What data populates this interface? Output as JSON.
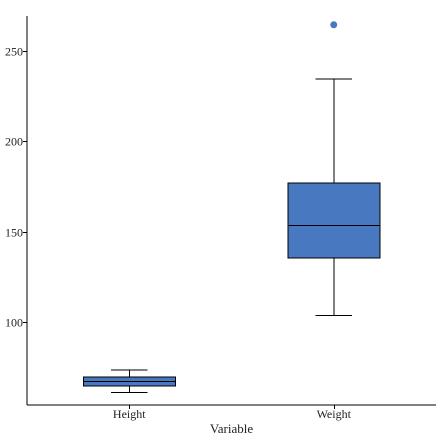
{
  "chart_data": {
    "type": "box",
    "xlabel": "Variable",
    "ylabel": "",
    "ylim": [
      50,
      270
    ],
    "yticks": [
      100,
      150,
      200,
      250
    ],
    "grid": false,
    "box_color": "#4878c0",
    "outlier_color": "#4a78c0",
    "categories": [
      "Height",
      "Weight"
    ],
    "boxes": [
      {
        "category": "Height",
        "whisker_low": 61,
        "q1": 64.5,
        "median": 67,
        "q3": 69.5,
        "whisker_high": 73.5,
        "outliers": []
      },
      {
        "category": "Weight",
        "whisker_low": 103.5,
        "q1": 135.5,
        "median": 153.5,
        "q3": 177,
        "whisker_high": 234.5,
        "outliers": [
          264.5
        ]
      }
    ]
  }
}
